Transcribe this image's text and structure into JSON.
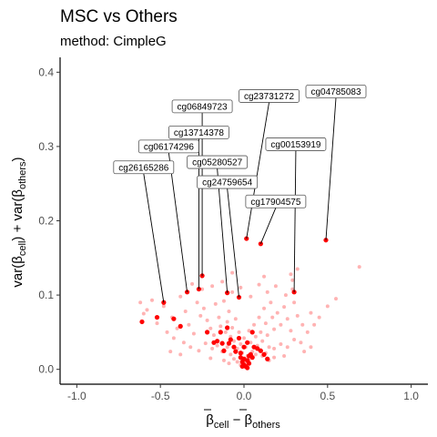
{
  "chart_data": {
    "type": "scatter",
    "title": "MSC vs Others",
    "subtitle": "method: CimpleG",
    "xlabel": {
      "main_left": "β",
      "sub_left": "cell",
      "dash": " − ",
      "main_right": "β",
      "sub_right": "others"
    },
    "ylabel": {
      "p1": "var(β",
      "s1": "cell",
      "p2": ") + var(β",
      "s2": "others",
      "p3": ")"
    },
    "xlim": [
      -1.1,
      1.1
    ],
    "ylim": [
      -0.02,
      0.42
    ],
    "x_ticks": [
      -1.0,
      -0.5,
      0.0,
      0.5,
      1.0
    ],
    "x_tick_labels": [
      "-1.0",
      "-0.5",
      "0.0",
      "0.5",
      "1.0"
    ],
    "y_ticks": [
      0.0,
      0.1,
      0.2,
      0.3,
      0.4
    ],
    "y_tick_labels": [
      "0.0",
      "0.1",
      "0.2",
      "0.3",
      "0.4"
    ],
    "grid": false,
    "colors": {
      "background": "#c7c7c7",
      "highlight": "#ff0000",
      "axis": "#000000",
      "tick_text": "#4d4d4d",
      "label_border": "#555555"
    },
    "background_points": [
      [
        -0.55,
        0.093
      ],
      [
        -0.48,
        0.085
      ],
      [
        -0.43,
        0.07
      ],
      [
        -0.4,
        0.055
      ],
      [
        -0.38,
        0.098
      ],
      [
        -0.35,
        0.078
      ],
      [
        -0.33,
        0.06
      ],
      [
        -0.3,
        0.048
      ],
      [
        -0.28,
        0.09
      ],
      [
        -0.26,
        0.072
      ],
      [
        -0.24,
        0.082
      ],
      [
        -0.22,
        0.066
      ],
      [
        -0.2,
        0.055
      ],
      [
        -0.18,
        0.046
      ],
      [
        -0.17,
        0.088
      ],
      [
        -0.15,
        0.07
      ],
      [
        -0.14,
        0.058
      ],
      [
        -0.12,
        0.092
      ],
      [
        -0.11,
        0.05
      ],
      [
        -0.1,
        0.064
      ],
      [
        -0.09,
        0.078
      ],
      [
        -0.08,
        0.044
      ],
      [
        -0.07,
        0.056
      ],
      [
        -0.06,
        0.038
      ],
      [
        -0.05,
        0.068
      ],
      [
        -0.04,
        0.028
      ],
      [
        -0.03,
        0.05
      ],
      [
        -0.02,
        0.034
      ],
      [
        -0.01,
        0.022
      ],
      [
        0.0,
        0.042
      ],
      [
        0.01,
        0.03
      ],
      [
        0.02,
        0.018
      ],
      [
        0.03,
        0.052
      ],
      [
        0.04,
        0.036
      ],
      [
        0.05,
        0.024
      ],
      [
        0.06,
        0.06
      ],
      [
        0.07,
        0.044
      ],
      [
        0.08,
        0.032
      ],
      [
        0.09,
        0.07
      ],
      [
        0.1,
        0.05
      ],
      [
        0.11,
        0.038
      ],
      [
        0.12,
        0.082
      ],
      [
        0.13,
        0.062
      ],
      [
        0.14,
        0.046
      ],
      [
        0.15,
        0.03
      ],
      [
        0.16,
        0.09
      ],
      [
        0.17,
        0.07
      ],
      [
        0.18,
        0.054
      ],
      [
        0.2,
        0.076
      ],
      [
        0.22,
        0.06
      ],
      [
        0.24,
        0.084
      ],
      [
        0.26,
        0.068
      ],
      [
        0.28,
        0.052
      ],
      [
        0.3,
        0.09
      ],
      [
        0.32,
        0.072
      ],
      [
        0.35,
        0.06
      ],
      [
        0.38,
        0.05
      ],
      [
        0.4,
        0.076
      ],
      [
        0.42,
        0.06
      ],
      [
        0.45,
        0.07
      ],
      [
        -0.6,
        0.075
      ],
      [
        -0.52,
        0.062
      ],
      [
        -0.46,
        0.05
      ],
      [
        -0.42,
        0.042
      ],
      [
        -0.36,
        0.036
      ],
      [
        -0.32,
        0.03
      ],
      [
        -0.27,
        0.025
      ],
      [
        -0.23,
        0.035
      ],
      [
        -0.19,
        0.028
      ],
      [
        -0.16,
        0.032
      ],
      [
        -0.13,
        0.024
      ],
      [
        -0.1,
        0.03
      ],
      [
        -0.08,
        0.02
      ],
      [
        -0.06,
        0.014
      ],
      [
        -0.04,
        0.01
      ],
      [
        -0.02,
        0.006
      ],
      [
        0.01,
        0.008
      ],
      [
        0.03,
        0.012
      ],
      [
        0.05,
        0.016
      ],
      [
        0.07,
        0.02
      ],
      [
        0.09,
        0.026
      ],
      [
        0.11,
        0.018
      ],
      [
        0.13,
        0.022
      ],
      [
        0.18,
        0.028
      ],
      [
        0.22,
        0.034
      ],
      [
        0.26,
        0.03
      ],
      [
        0.3,
        0.04
      ],
      [
        0.34,
        0.036
      ],
      [
        -0.31,
        0.115
      ],
      [
        -0.25,
        0.108
      ],
      [
        -0.19,
        0.112
      ],
      [
        -0.13,
        0.118
      ],
      [
        -0.07,
        0.104
      ],
      [
        -0.02,
        0.11
      ],
      [
        0.04,
        0.098
      ],
      [
        0.09,
        0.114
      ],
      [
        0.14,
        0.104
      ],
      [
        0.19,
        0.112
      ],
      [
        0.25,
        0.1
      ],
      [
        0.29,
        0.108
      ],
      [
        -0.07,
        0.13
      ],
      [
        0.12,
        0.125
      ],
      [
        0.28,
        0.128
      ],
      [
        0.32,
        0.135
      ],
      [
        0.29,
        0.12
      ],
      [
        0.69,
        0.138
      ],
      [
        0.5,
        0.085
      ],
      [
        0.55,
        0.095
      ],
      [
        -0.62,
        0.09
      ],
      [
        -0.58,
        0.08
      ],
      [
        -0.12,
        0.012
      ],
      [
        -0.09,
        0.008
      ],
      [
        0.15,
        0.012
      ],
      [
        0.18,
        0.016
      ],
      [
        -0.44,
        0.024
      ],
      [
        -0.38,
        0.02
      ],
      [
        0.24,
        0.018
      ],
      [
        0.36,
        0.024
      ],
      [
        0.4,
        0.03
      ],
      [
        -0.2,
        0.015
      ]
    ],
    "highlight_points": [
      [
        -0.61,
        0.064
      ],
      [
        -0.52,
        0.07
      ],
      [
        -0.48,
        0.09
      ],
      [
        -0.42,
        0.068
      ],
      [
        -0.38,
        0.058
      ],
      [
        -0.34,
        0.104
      ],
      [
        -0.27,
        0.108
      ],
      [
        -0.25,
        0.126
      ],
      [
        -0.22,
        0.05
      ],
      [
        -0.18,
        0.036
      ],
      [
        -0.16,
        0.038
      ],
      [
        -0.13,
        0.035
      ],
      [
        -0.12,
        0.025
      ],
      [
        -0.1,
        0.103
      ],
      [
        -0.09,
        0.035
      ],
      [
        -0.08,
        0.04
      ],
      [
        -0.06,
        0.03
      ],
      [
        -0.05,
        0.024
      ],
      [
        -0.03,
        0.097
      ],
      [
        -0.02,
        0.016
      ],
      [
        -0.01,
        0.01
      ],
      [
        0.0,
        0.006
      ],
      [
        0.01,
        0.004
      ],
      [
        0.02,
        0.012
      ],
      [
        0.03,
        0.008
      ],
      [
        0.04,
        0.02
      ],
      [
        0.05,
        0.016
      ],
      [
        0.06,
        0.03
      ],
      [
        0.08,
        0.028
      ],
      [
        0.1,
        0.025
      ],
      [
        0.12,
        0.02
      ],
      [
        0.14,
        0.014
      ],
      [
        -0.01,
        0.004
      ],
      [
        0.02,
        0.002
      ],
      [
        0.0,
        0.014
      ],
      [
        -0.02,
        0.022
      ],
      [
        0.03,
        0.018
      ],
      [
        0.015,
        0.176
      ],
      [
        0.1,
        0.169
      ],
      [
        0.3,
        0.104
      ],
      [
        0.49,
        0.174
      ],
      [
        0.0,
        0.03
      ],
      [
        -0.14,
        0.05
      ],
      [
        -0.1,
        0.056
      ],
      [
        0.05,
        0.05
      ],
      [
        -0.03,
        0.042
      ],
      [
        0.02,
        0.036
      ]
    ],
    "annotations": [
      {
        "label": "cg04785083",
        "x": 0.49,
        "y": 0.174,
        "lx": 0.55,
        "ly": 0.374
      },
      {
        "label": "cg23731272",
        "x": 0.015,
        "y": 0.176,
        "lx": 0.15,
        "ly": 0.368
      },
      {
        "label": "cg06849723",
        "x": -0.25,
        "y": 0.126,
        "lx": -0.25,
        "ly": 0.354
      },
      {
        "label": "cg13714378",
        "x": -0.27,
        "y": 0.108,
        "lx": -0.27,
        "ly": 0.319
      },
      {
        "label": "cg00153919",
        "x": 0.3,
        "y": 0.104,
        "lx": 0.31,
        "ly": 0.303
      },
      {
        "label": "cg06174296",
        "x": -0.34,
        "y": 0.104,
        "lx": -0.45,
        "ly": 0.3
      },
      {
        "label": "cg05280527",
        "x": -0.1,
        "y": 0.103,
        "lx": -0.16,
        "ly": 0.279
      },
      {
        "label": "cg26165286",
        "x": -0.48,
        "y": 0.09,
        "lx": -0.6,
        "ly": 0.272
      },
      {
        "label": "cg24759654",
        "x": -0.03,
        "y": 0.097,
        "lx": -0.1,
        "ly": 0.252
      },
      {
        "label": "cg17904575",
        "x": 0.1,
        "y": 0.169,
        "lx": 0.19,
        "ly": 0.226
      }
    ]
  }
}
